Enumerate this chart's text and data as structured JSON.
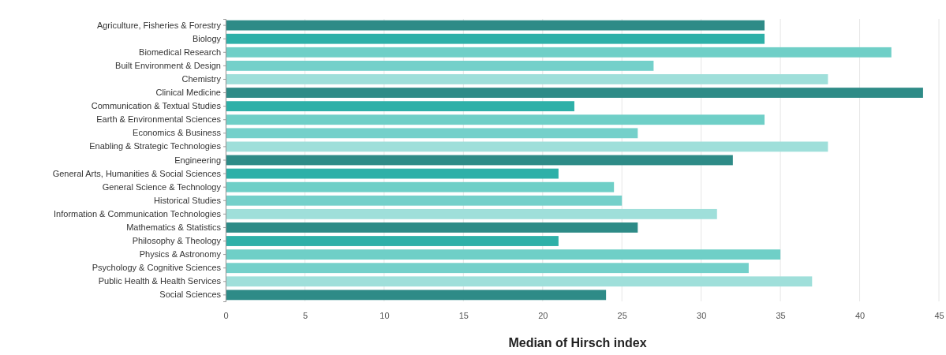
{
  "chart_data": {
    "type": "bar",
    "orientation": "horizontal",
    "xlabel": "Median of Hirsch index",
    "categories": [
      "Agriculture, Fisheries & Forestry",
      "Biology",
      "Biomedical Research",
      "Built Environment & Design",
      "Chemistry",
      "Clinical Medicine",
      "Communication & Textual Studies",
      "Earth & Environmental Sciences",
      "Economics & Business",
      "Enabling & Strategic Technologies",
      "Engineering",
      "General Arts, Humanities & Social Sciences",
      "General Science & Technology",
      "Historical Studies",
      "Information & Communication Technologies",
      "Mathematics & Statistics",
      "Philosophy & Theology",
      "Physics & Astronomy",
      "Psychology & Cognitive Sciences",
      "Public Health & Health Services",
      "Social Sciences"
    ],
    "values": [
      34,
      34,
      42,
      27,
      38,
      44,
      22,
      34,
      26,
      38,
      32,
      21,
      24.5,
      25,
      31,
      26,
      21,
      35,
      33,
      37,
      24
    ],
    "colors": [
      "#2e8b87",
      "#2eb0a8",
      "#6fcfc7",
      "#74d0ca",
      "#9fdfda",
      "#2e8b87",
      "#2eb0a8",
      "#6fcfc7",
      "#74d0ca",
      "#9fdfda",
      "#2e8b87",
      "#2eb0a8",
      "#6fcfc7",
      "#74d0ca",
      "#9fdfda",
      "#2e8b87",
      "#2eb0a8",
      "#6fcfc7",
      "#74d0ca",
      "#9fdfda",
      "#2e8b87"
    ],
    "xlim": [
      0,
      45
    ],
    "xticks": [
      0,
      5,
      10,
      15,
      20,
      25,
      30,
      35,
      40,
      45
    ],
    "grid": "x"
  }
}
